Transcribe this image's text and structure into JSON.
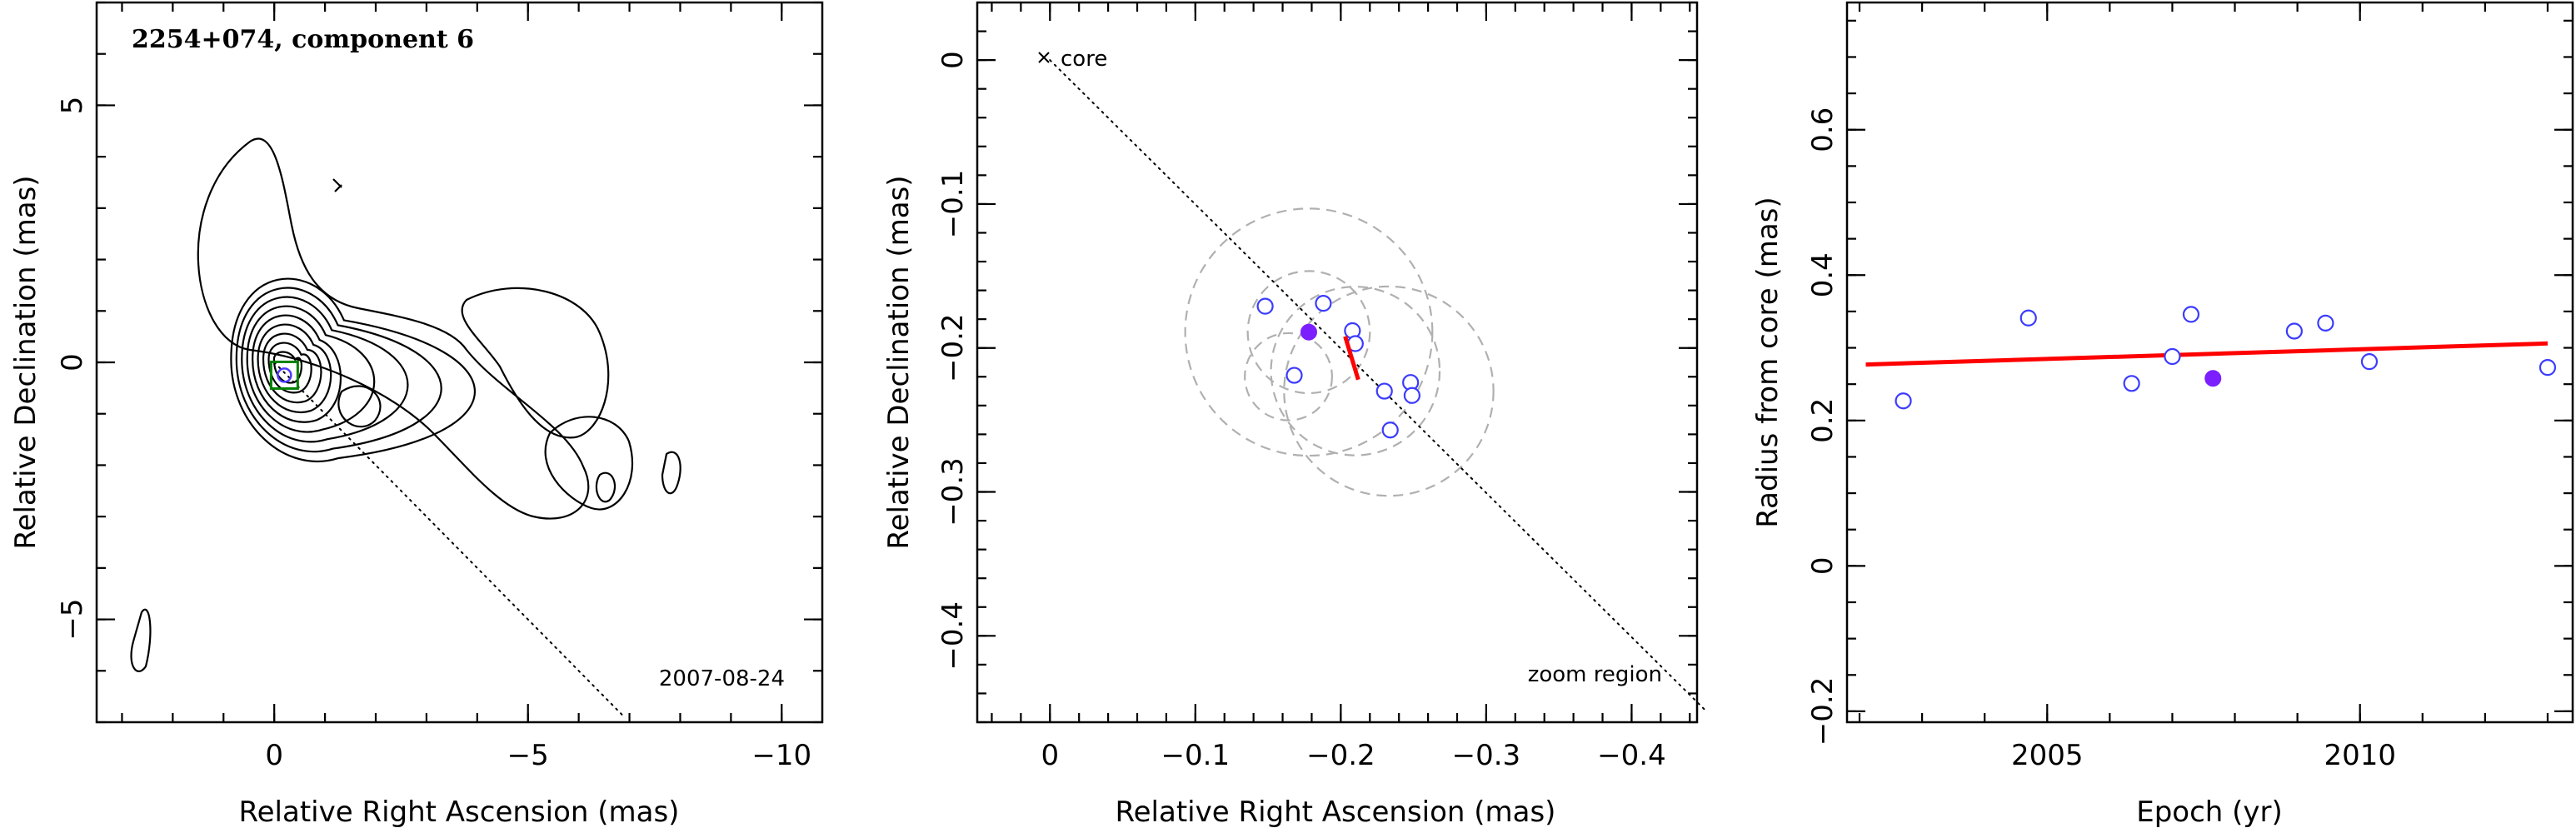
{
  "figure": {
    "panels": 3
  },
  "chart_data": [
    {
      "type": "scatter",
      "title": "2254+074, component 6",
      "date_label": "2007-08-24",
      "xlabel": "Relative Right Ascension (mas)",
      "ylabel": "Relative Declination (mas)",
      "xlim": [
        3.5,
        -10.8
      ],
      "ylim": [
        -7.0,
        7.0
      ],
      "xticks": [
        0,
        -5,
        -10
      ],
      "xtick_labels": [
        "0",
        "−5",
        "−10"
      ],
      "yticks": [
        -5,
        0,
        5
      ],
      "ytick_labels": [
        "−5",
        "0",
        "5"
      ],
      "component_marker": {
        "x": -0.2,
        "y": -0.25
      },
      "direction_line": {
        "from": [
          0,
          0
        ],
        "to": [
          -6.9,
          -6.9
        ]
      },
      "contour_color": "#000000",
      "box_color": "#008000",
      "marker_color": "#4b3cff"
    },
    {
      "type": "scatter",
      "xlabel": "Relative Right Ascension (mas)",
      "ylabel": "Relative Declination (mas)",
      "xlim": [
        0.05,
        -0.445
      ],
      "ylim": [
        -0.46,
        0.04
      ],
      "xticks": [
        0,
        -0.1,
        -0.2,
        -0.3,
        -0.4
      ],
      "xtick_labels": [
        "0",
        "−0.1",
        "−0.2",
        "−0.3",
        "−0.4"
      ],
      "yticks": [
        0,
        -0.1,
        -0.2,
        -0.3,
        -0.4
      ],
      "ytick_labels": [
        "0",
        "−0.1",
        "−0.2",
        "−0.3",
        "−0.4"
      ],
      "core_label": "core",
      "zoom_label": "zoom region",
      "points": [
        {
          "x": -0.148,
          "y": -0.171
        },
        {
          "x": -0.188,
          "y": -0.169
        },
        {
          "x": -0.168,
          "y": -0.219
        },
        {
          "x": -0.208,
          "y": -0.188
        },
        {
          "x": -0.21,
          "y": -0.197
        },
        {
          "x": -0.23,
          "y": -0.23
        },
        {
          "x": -0.248,
          "y": -0.224
        },
        {
          "x": -0.249,
          "y": -0.233
        },
        {
          "x": -0.234,
          "y": -0.257
        }
      ],
      "highlight_point": {
        "x": -0.178,
        "y": -0.189
      },
      "circles": [
        {
          "x": -0.178,
          "y": -0.189,
          "r": 0.085
        },
        {
          "x": -0.178,
          "y": -0.189,
          "r": 0.042
        },
        {
          "x": -0.233,
          "y": -0.23,
          "r": 0.072
        },
        {
          "x": -0.21,
          "y": -0.216,
          "r": 0.058
        },
        {
          "x": -0.164,
          "y": -0.22,
          "r": 0.03
        }
      ],
      "velocity_vector": {
        "from": [
          -0.203,
          -0.192
        ],
        "to": [
          -0.212,
          -0.222
        ]
      },
      "direction_line": {
        "from": [
          0,
          0
        ],
        "to": [
          -0.45,
          -0.451
        ]
      },
      "point_color": "#3b3bff",
      "highlight_color": "#7b1fff",
      "circle_color": "#b0b0b0",
      "vector_color": "#ff0000"
    },
    {
      "type": "scatter",
      "xlabel": "Epoch (yr)",
      "ylabel": "Radius from core (mas)",
      "xlim": [
        2001.8,
        2013.4
      ],
      "ylim": [
        -0.215,
        0.775
      ],
      "xticks": [
        2005,
        2010
      ],
      "xtick_labels": [
        "2005",
        "2010"
      ],
      "yticks": [
        -0.2,
        0,
        0.2,
        0.4,
        0.6
      ],
      "ytick_labels": [
        "−0.2",
        "0",
        "0.2",
        "0.4",
        "0.6"
      ],
      "points": [
        {
          "x": 2002.7,
          "y": 0.227
        },
        {
          "x": 2004.7,
          "y": 0.341
        },
        {
          "x": 2006.35,
          "y": 0.251
        },
        {
          "x": 2007.0,
          "y": 0.288
        },
        {
          "x": 2007.3,
          "y": 0.346
        },
        {
          "x": 2008.95,
          "y": 0.323
        },
        {
          "x": 2009.45,
          "y": 0.334
        },
        {
          "x": 2010.15,
          "y": 0.281
        },
        {
          "x": 2013.0,
          "y": 0.273
        }
      ],
      "highlight_point": {
        "x": 2007.65,
        "y": 0.258
      },
      "fit_line": {
        "from": [
          2002.1,
          0.277
        ],
        "to": [
          2013.0,
          0.306
        ]
      },
      "point_color": "#3b3bff",
      "highlight_color": "#7b1fff",
      "fit_color": "#ff0000"
    }
  ]
}
